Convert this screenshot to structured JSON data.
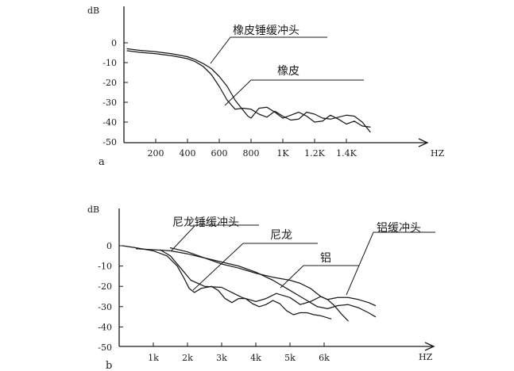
{
  "chart_data": [
    {
      "panel_tag": "a",
      "type": "line",
      "ylabel": "dB",
      "xlabel": "HZ",
      "ylim": [
        -50,
        5
      ],
      "xlim": [
        0,
        1650
      ],
      "yticks": [
        0,
        -10,
        -20,
        -30,
        -40,
        -50
      ],
      "xticks": [
        {
          "value": 200,
          "label": "200"
        },
        {
          "value": 400,
          "label": "400"
        },
        {
          "value": 600,
          "label": "600"
        },
        {
          "value": 800,
          "label": "800"
        },
        {
          "value": 1000,
          "label": "1K"
        },
        {
          "value": 1200,
          "label": "1.2K"
        },
        {
          "value": 1400,
          "label": "1.4K"
        }
      ],
      "series": [
        {
          "name": "橡皮锤缓冲头",
          "x": [
            20,
            100,
            200,
            300,
            400,
            450,
            500,
            550,
            600,
            650,
            700,
            750,
            800,
            850,
            900,
            950,
            1000,
            1050,
            1100,
            1150,
            1200,
            1250,
            1300,
            1350,
            1400,
            1450,
            1500,
            1550
          ],
          "values": [
            -4,
            -4.8,
            -5.5,
            -6.5,
            -8,
            -9.5,
            -12,
            -16,
            -22,
            -29,
            -33.5,
            -33,
            -33.5,
            -36,
            -37.5,
            -34.5,
            -37,
            -39,
            -38.5,
            -35,
            -36,
            -38,
            -38.5,
            -37.5,
            -36.5,
            -37,
            -40,
            -45
          ]
        },
        {
          "name": "橡皮",
          "x": [
            20,
            100,
            200,
            300,
            400,
            450,
            500,
            550,
            600,
            650,
            700,
            750,
            780,
            800,
            850,
            900,
            950,
            1000,
            1050,
            1100,
            1150,
            1200,
            1250,
            1300,
            1350,
            1400,
            1450,
            1500,
            1550
          ],
          "values": [
            -3,
            -3.8,
            -4.5,
            -5.5,
            -7,
            -8.5,
            -10.5,
            -13,
            -17,
            -22,
            -29,
            -34,
            -37,
            -38,
            -33,
            -32.5,
            -35,
            -38,
            -36.5,
            -35,
            -37,
            -40,
            -39.5,
            -36.5,
            -38.5,
            -41,
            -39.5,
            -42,
            -42.5
          ]
        }
      ],
      "annotations": [
        "橡皮锤缓冲头",
        "橡皮"
      ]
    },
    {
      "panel_tag": "b",
      "type": "line",
      "ylabel": "dB",
      "xlabel": "HZ",
      "ylim": [
        -50,
        5
      ],
      "xlim": [
        0,
        9.2
      ],
      "yticks": [
        0,
        -10,
        -20,
        -30,
        -40,
        -50
      ],
      "xticks": [
        {
          "value": 1,
          "label": "1k"
        },
        {
          "value": 2,
          "label": "2k"
        },
        {
          "value": 3,
          "label": "3k"
        },
        {
          "value": 4,
          "label": "4k"
        },
        {
          "value": 5,
          "label": "5k"
        },
        {
          "value": 6,
          "label": "6k"
        }
      ],
      "series": [
        {
          "name": "尼龙锤缓冲头",
          "x": [
            0.1,
            0.5,
            1.0,
            1.4,
            1.7,
            1.9,
            2.05,
            2.2,
            2.4,
            2.7,
            2.9,
            3.1,
            3.3,
            3.5,
            3.7,
            3.9,
            4.1,
            4.3,
            4.5,
            4.7,
            4.9,
            5.1,
            5.3,
            5.5,
            5.7,
            5.9,
            6.2
          ],
          "values": [
            0,
            -1,
            -2.5,
            -5,
            -10,
            -16,
            -21,
            -23,
            -21,
            -20,
            -22,
            -26,
            -28,
            -26,
            -26,
            -28.5,
            -30,
            -29,
            -27,
            -28.5,
            -32,
            -34,
            -33,
            -33,
            -34,
            -34.5,
            -36
          ]
        },
        {
          "name": "尼龙",
          "x": [
            0.5,
            1.5,
            2.0,
            2.5,
            3.0,
            3.5,
            4.0,
            4.5,
            5.0,
            5.5,
            5.8,
            6.1,
            6.4,
            6.7,
            7.0,
            7.3,
            7.5
          ],
          "values": [
            -1.5,
            -2.5,
            -4,
            -6,
            -8,
            -10,
            -13,
            -17,
            -22,
            -27,
            -30,
            -31,
            -29.5,
            -29,
            -30.5,
            -33,
            -35
          ]
        },
        {
          "name": "铝",
          "x": [
            1.2,
            1.5,
            1.8,
            2.1,
            2.5,
            3.0,
            3.3,
            3.6,
            4.0,
            4.3,
            4.6,
            5.0,
            5.3,
            5.6,
            5.9,
            6.1,
            6.3,
            6.5,
            6.7
          ],
          "values": [
            -2,
            -5,
            -11,
            -17,
            -20,
            -20.5,
            -23,
            -25.5,
            -27.5,
            -26,
            -23.5,
            -25.5,
            -29,
            -27.5,
            -25,
            -26.5,
            -29.5,
            -33.5,
            -37
          ]
        },
        {
          "name": "铝缓冲头",
          "x": [
            1.5,
            2.0,
            2.5,
            3.0,
            3.5,
            4.0,
            4.5,
            5.0,
            5.3,
            5.6,
            5.9,
            6.1,
            6.4,
            6.7,
            7.0,
            7.3,
            7.5
          ],
          "values": [
            -1,
            -3,
            -6,
            -9,
            -11,
            -13.5,
            -15.5,
            -17,
            -18.5,
            -21,
            -25,
            -26.5,
            -25.5,
            -25.5,
            -26.5,
            -28,
            -29.5
          ]
        }
      ],
      "annotations": [
        "尼龙锤缓冲头",
        "尼龙",
        "铝",
        "铝缓冲头"
      ]
    }
  ]
}
